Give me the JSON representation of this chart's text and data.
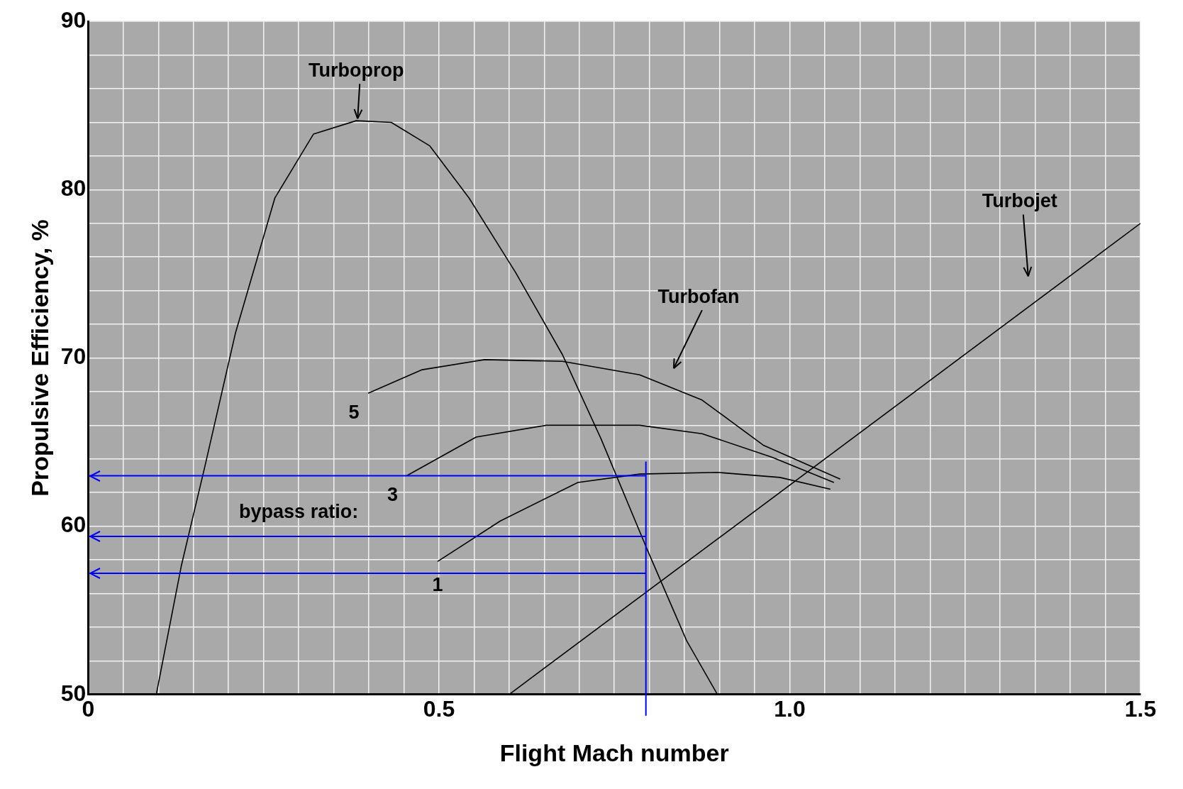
{
  "chart_data": {
    "type": "line",
    "xlabel": "Flight Mach number",
    "ylabel": "Propulsive Efficiency, %",
    "xlim": [
      0,
      1.5
    ],
    "ylim": [
      50,
      90
    ],
    "xticks": [
      0,
      {
        "value": 0.05,
        "label": null
      },
      {
        "value": 0.1,
        "label": null
      },
      {
        "value": 0.15,
        "label": null
      },
      {
        "value": 0.2,
        "label": null
      },
      {
        "value": 0.25,
        "label": null
      },
      {
        "value": 0.3,
        "label": null
      },
      {
        "value": 0.35,
        "label": null
      },
      {
        "value": 0.4,
        "label": null
      },
      {
        "value": 0.45,
        "label": null
      },
      0.5,
      {
        "value": 0.55,
        "label": null
      },
      {
        "value": 0.6,
        "label": null
      },
      {
        "value": 0.65,
        "label": null
      },
      {
        "value": 0.7,
        "label": null
      },
      {
        "value": 0.75,
        "label": null
      },
      {
        "value": 0.8,
        "label": null
      },
      {
        "value": 0.85,
        "label": null
      },
      {
        "value": 0.9,
        "label": null
      },
      {
        "value": 0.95,
        "label": null
      },
      {
        "value": 1,
        "label": "1.0"
      },
      {
        "value": 1.05,
        "label": null
      },
      {
        "value": 1.1,
        "label": null
      },
      {
        "value": 1.15,
        "label": null
      },
      {
        "value": 1.2,
        "label": null
      },
      {
        "value": 1.25,
        "label": null
      },
      {
        "value": 1.3,
        "label": null
      },
      {
        "value": 1.35,
        "label": null
      },
      {
        "value": 1.4,
        "label": null
      },
      {
        "value": 1.45,
        "label": null
      },
      1.5
    ],
    "yticks": [
      50,
      {
        "value": 52,
        "label": null
      },
      {
        "value": 54,
        "label": null
      },
      {
        "value": 56,
        "label": null
      },
      {
        "value": 58,
        "label": null
      },
      60,
      {
        "value": 62,
        "label": null
      },
      {
        "value": 64,
        "label": null
      },
      {
        "value": 66,
        "label": null
      },
      {
        "value": 68,
        "label": null
      },
      70,
      {
        "value": 72,
        "label": null
      },
      {
        "value": 74,
        "label": null
      },
      {
        "value": 76,
        "label": null
      },
      {
        "value": 78,
        "label": null
      },
      80,
      {
        "value": 82,
        "label": null
      },
      {
        "value": 84,
        "label": null
      },
      {
        "value": 86,
        "label": null
      },
      {
        "value": 88,
        "label": null
      },
      90
    ],
    "grid": true,
    "legend": false,
    "marker": "none",
    "line_style": "solid",
    "series": [
      {
        "name": "Turboprop",
        "color": "#000000",
        "x": [
          0.097,
          0.133,
          0.166,
          0.21,
          0.266,
          0.321,
          0.382,
          0.432,
          0.487,
          0.543,
          0.609,
          0.676,
          0.731,
          0.797,
          0.853,
          0.897
        ],
        "values": [
          50,
          57.7,
          63.5,
          71.5,
          79.5,
          83.3,
          84.1,
          84.0,
          82.6,
          79.5,
          75.1,
          70.2,
          65.2,
          58.6,
          53.2,
          50
        ]
      },
      {
        "name": "5",
        "color": "#000000",
        "x": [
          0.399,
          0.476,
          0.565,
          0.676,
          0.786,
          0.875,
          0.963,
          1.072
        ],
        "values": [
          67.9,
          69.3,
          69.9,
          69.8,
          69.0,
          67.5,
          64.8,
          62.8
        ]
      },
      {
        "name": "3",
        "color": "#000000",
        "x": [
          0.454,
          0.553,
          0.653,
          0.786,
          0.875,
          0.975,
          1.063
        ],
        "values": [
          63.0,
          65.3,
          66.0,
          66.0,
          65.5,
          64.1,
          62.6
        ]
      },
      {
        "name": "1",
        "color": "#000000",
        "x": [
          0.498,
          0.587,
          0.698,
          0.786,
          0.897,
          0.986,
          1.058
        ],
        "values": [
          57.9,
          60.3,
          62.6,
          63.1,
          63.2,
          62.9,
          62.2
        ]
      },
      {
        "name": "Turbojet",
        "color": "#000000",
        "x": [
          0.6,
          1.5
        ],
        "values": [
          50,
          78.0
        ]
      }
    ],
    "ref_lines": [
      {
        "axis": "x",
        "value": 0.795,
        "color": "#0000ff"
      },
      {
        "axis": "y",
        "value": 63.0,
        "color": "#0000ff"
      },
      {
        "axis": "y",
        "value": 59.4,
        "color": "#0000ff"
      },
      {
        "axis": "y",
        "value": 57.2,
        "color": "#0000ff"
      }
    ],
    "annotations": [
      "Turbofan",
      "bypass ratio:"
    ]
  }
}
